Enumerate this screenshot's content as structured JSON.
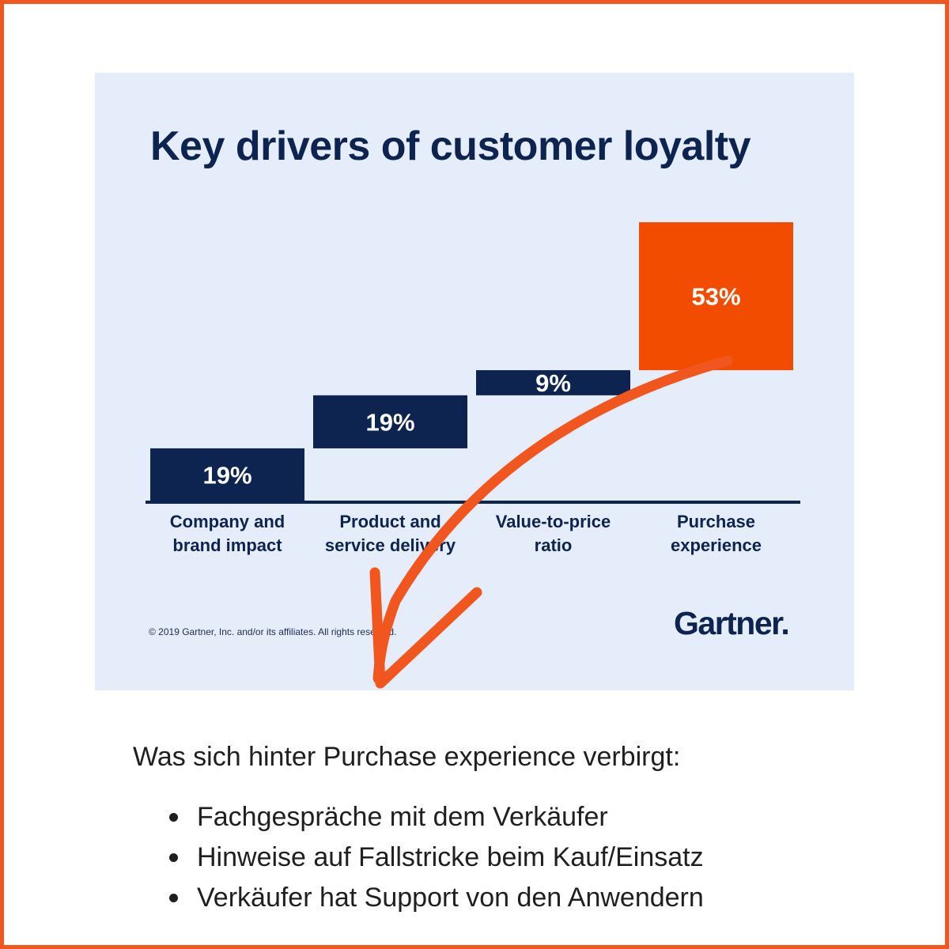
{
  "chart_data": {
    "type": "bar",
    "title": "Key drivers of customer loyalty",
    "categories": [
      [
        "Company and",
        "brand impact"
      ],
      [
        "Product and",
        "service delivery"
      ],
      [
        "Value-to-price",
        "ratio"
      ],
      [
        "Purchase",
        "experience"
      ]
    ],
    "values": [
      19,
      19,
      9,
      53
    ],
    "value_labels": [
      "19%",
      "19%",
      "9%",
      "53%"
    ],
    "layout": "waterfall",
    "colors": [
      "#0d2350",
      "#0d2350",
      "#0d2350",
      "#f24c00"
    ],
    "ylim": [
      0,
      100
    ],
    "grid": false,
    "copyright": "© 2019 Gartner, Inc. and/or its affiliates. All rights reserved.",
    "logo": "Gartner."
  },
  "accent_color": "#f0561d",
  "note": {
    "heading": "Was sich hinter Purchase experience verbirgt:",
    "items": [
      "Fachgespräche mit dem Verkäufer",
      "Hinweise auf Fallstricke beim Kauf/Einsatz",
      "Verkäufer hat Support von den Anwendern"
    ]
  }
}
